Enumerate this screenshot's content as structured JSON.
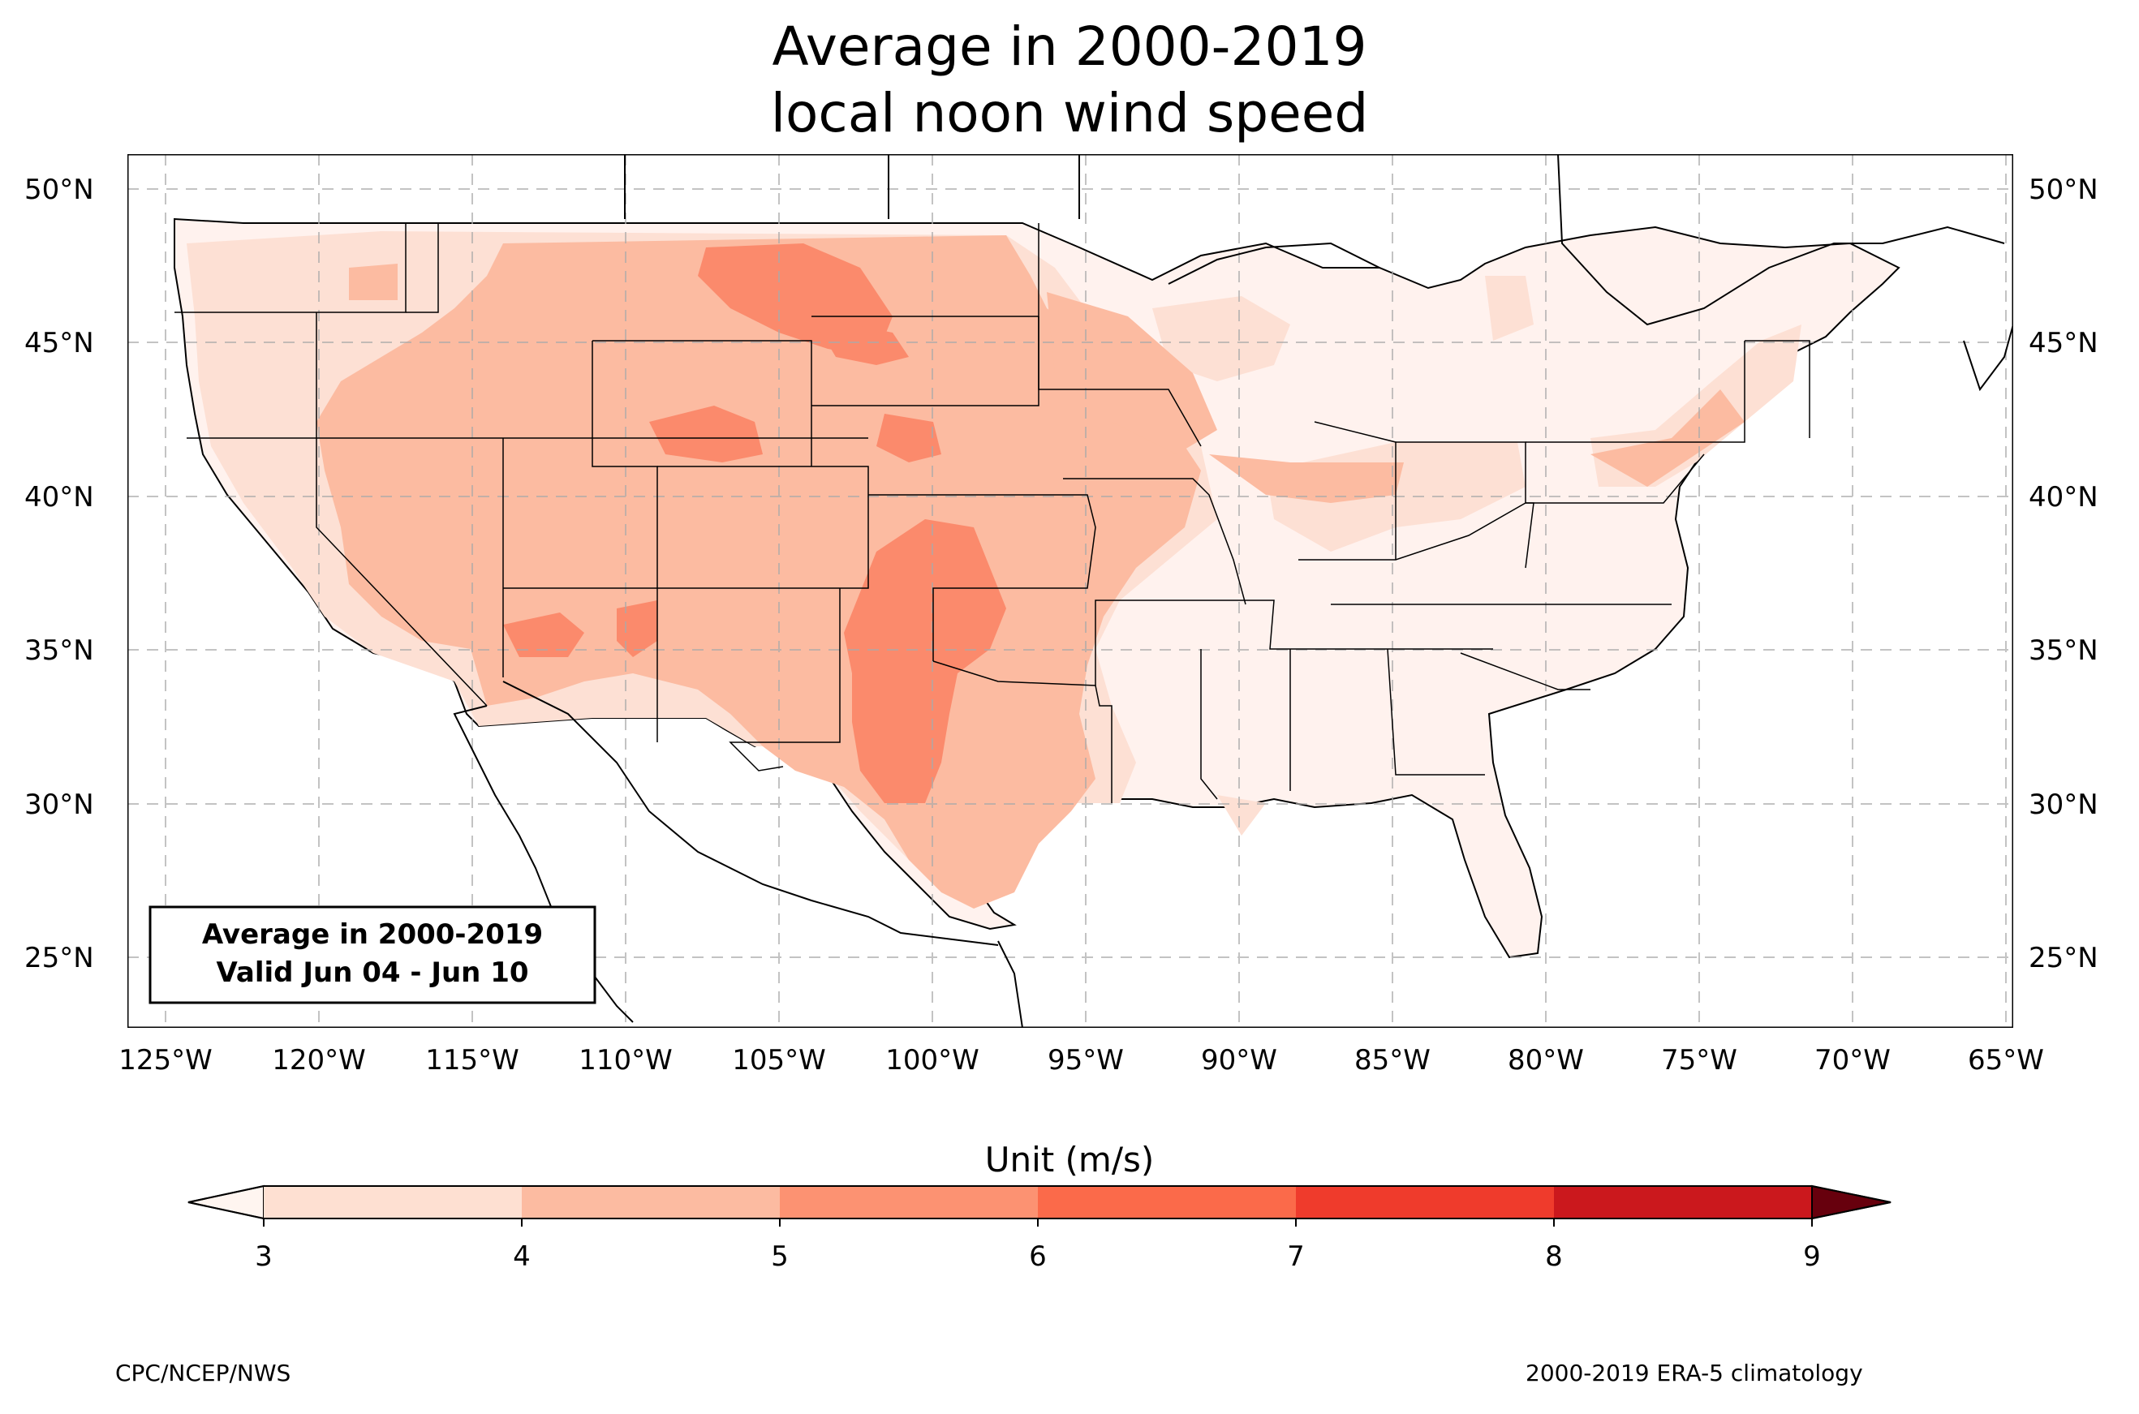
{
  "title": {
    "line1": "Average in 2000-2019",
    "line2": "local noon wind speed"
  },
  "map": {
    "lat_ticks": [
      "50°N",
      "45°N",
      "40°N",
      "35°N",
      "30°N",
      "25°N"
    ],
    "lon_ticks": [
      "125°W",
      "120°W",
      "115°W",
      "110°W",
      "105°W",
      "100°W",
      "95°W",
      "90°W",
      "85°W",
      "80°W",
      "75°W",
      "70°W",
      "65°W"
    ],
    "lat_range": [
      22.8,
      51.2
    ],
    "lon_range": [
      -126.3,
      -64.9
    ],
    "gridlines": true,
    "inset": {
      "line1": "Average in 2000-2019",
      "line2": "Valid Jun 04 - Jun 10"
    }
  },
  "colorbar": {
    "unit_label": "Unit (m/s)",
    "levels": [
      "3",
      "4",
      "5",
      "6",
      "7",
      "8",
      "9"
    ],
    "colors": [
      "#fee0d2",
      "#fcbba1",
      "#fc9272",
      "#fb6a4a",
      "#ef3b2c",
      "#cb181d",
      "#99000d"
    ],
    "under_color": "#fff5f0",
    "over_color": "#67000d",
    "extend": "both"
  },
  "colors": {
    "level_3_4": "#fde0d4",
    "level_4_5": "#fcbba1",
    "level_5_6": "#fb8a6c",
    "below_3": "#fff2ee"
  },
  "footer": {
    "left": "CPC/NCEP/NWS",
    "right": "2000-2019 ERA-5 climatology"
  }
}
